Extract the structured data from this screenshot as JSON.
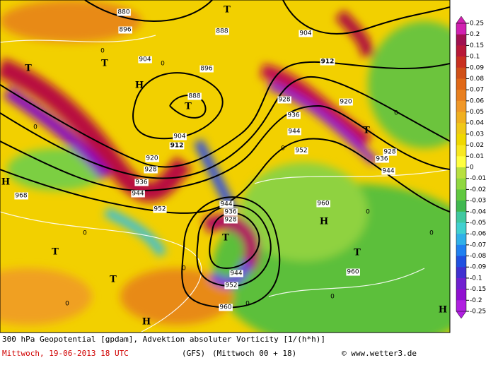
{
  "map": {
    "labels": [
      "912",
      "912",
      "904",
      "904",
      "904",
      "896",
      "896",
      "888",
      "888",
      "880",
      "920",
      "920",
      "928",
      "928",
      "928",
      "928",
      "936",
      "936",
      "936",
      "936",
      "944",
      "944",
      "944",
      "944",
      "944",
      "952",
      "952",
      "952",
      "960",
      "960",
      "960",
      "968",
      "T",
      "T",
      "T",
      "T",
      "T",
      "T",
      "T",
      "T",
      "T",
      "H",
      "H",
      "H",
      "H",
      "H",
      "0",
      "0",
      "0",
      "0",
      "0",
      "0",
      "0",
      "0",
      "0",
      "0",
      "0",
      "0"
    ]
  },
  "colorbar": {
    "ticks": [
      "0.25",
      "0.2",
      "0.15",
      "0.1",
      "0.09",
      "0.08",
      "0.07",
      "0.06",
      "0.05",
      "0.04",
      "0.03",
      "0.02",
      "0.01",
      "0",
      "-0.01",
      "-0.02",
      "-0.03",
      "-0.04",
      "-0.05",
      "-0.06",
      "-0.07",
      "-0.08",
      "-0.09",
      "-0.1",
      "-0.15",
      "-0.2",
      "-0.25"
    ]
  },
  "footer": {
    "title": "300 hPa Geopotential [gpdam], Advektion absoluter Vorticity [1/(h*h)]",
    "date": "Mittwoch, 19-06-2013  18 UTC",
    "model": "(GFS)",
    "run": "(Mittwoch 00 + 18)",
    "credit": "© www.wetter3.de"
  }
}
